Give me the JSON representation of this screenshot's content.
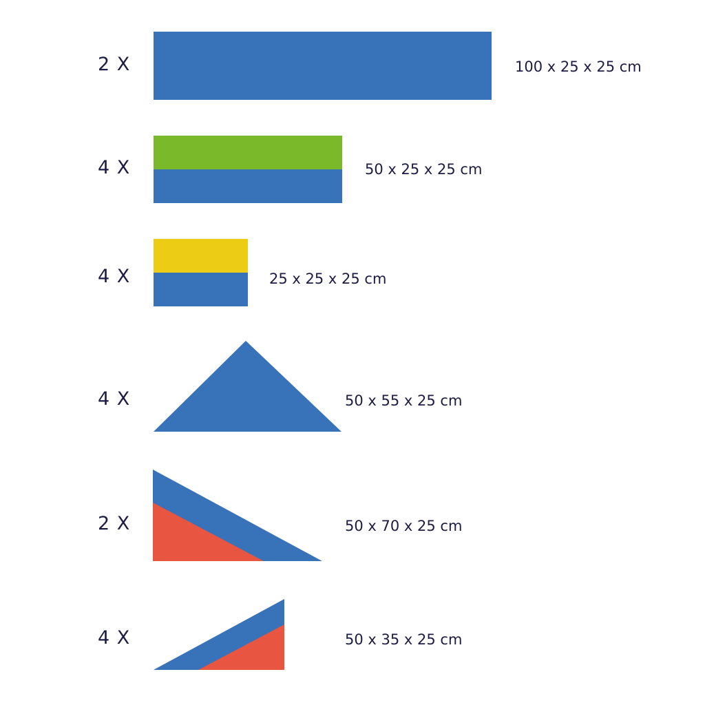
{
  "colors": {
    "blue": "#3872b8",
    "green": "#7ab929",
    "yellow": "#edcc16",
    "red": "#e85540",
    "text": "#1c1c44"
  },
  "pieces": [
    {
      "quantity": "2 X",
      "dimensions": "100 x 25 x 25 cm",
      "shape": "rectangle",
      "colors": [
        "blue"
      ]
    },
    {
      "quantity": "4 X",
      "dimensions": "50 x 25 x 25 cm",
      "shape": "rectangle",
      "colors": [
        "green",
        "blue"
      ]
    },
    {
      "quantity": "4 X",
      "dimensions": "25 x 25 x 25 cm",
      "shape": "rectangle",
      "colors": [
        "yellow",
        "blue"
      ]
    },
    {
      "quantity": "4 X",
      "dimensions": "50 x 55 x 25 cm",
      "shape": "triangle",
      "colors": [
        "blue"
      ]
    },
    {
      "quantity": "2 X",
      "dimensions": "50 x 70 x 25 cm",
      "shape": "right-triangle",
      "colors": [
        "blue",
        "red"
      ]
    },
    {
      "quantity": "4 X",
      "dimensions": "50 x 35 x 25 cm",
      "shape": "right-triangle",
      "colors": [
        "blue",
        "red"
      ]
    }
  ]
}
